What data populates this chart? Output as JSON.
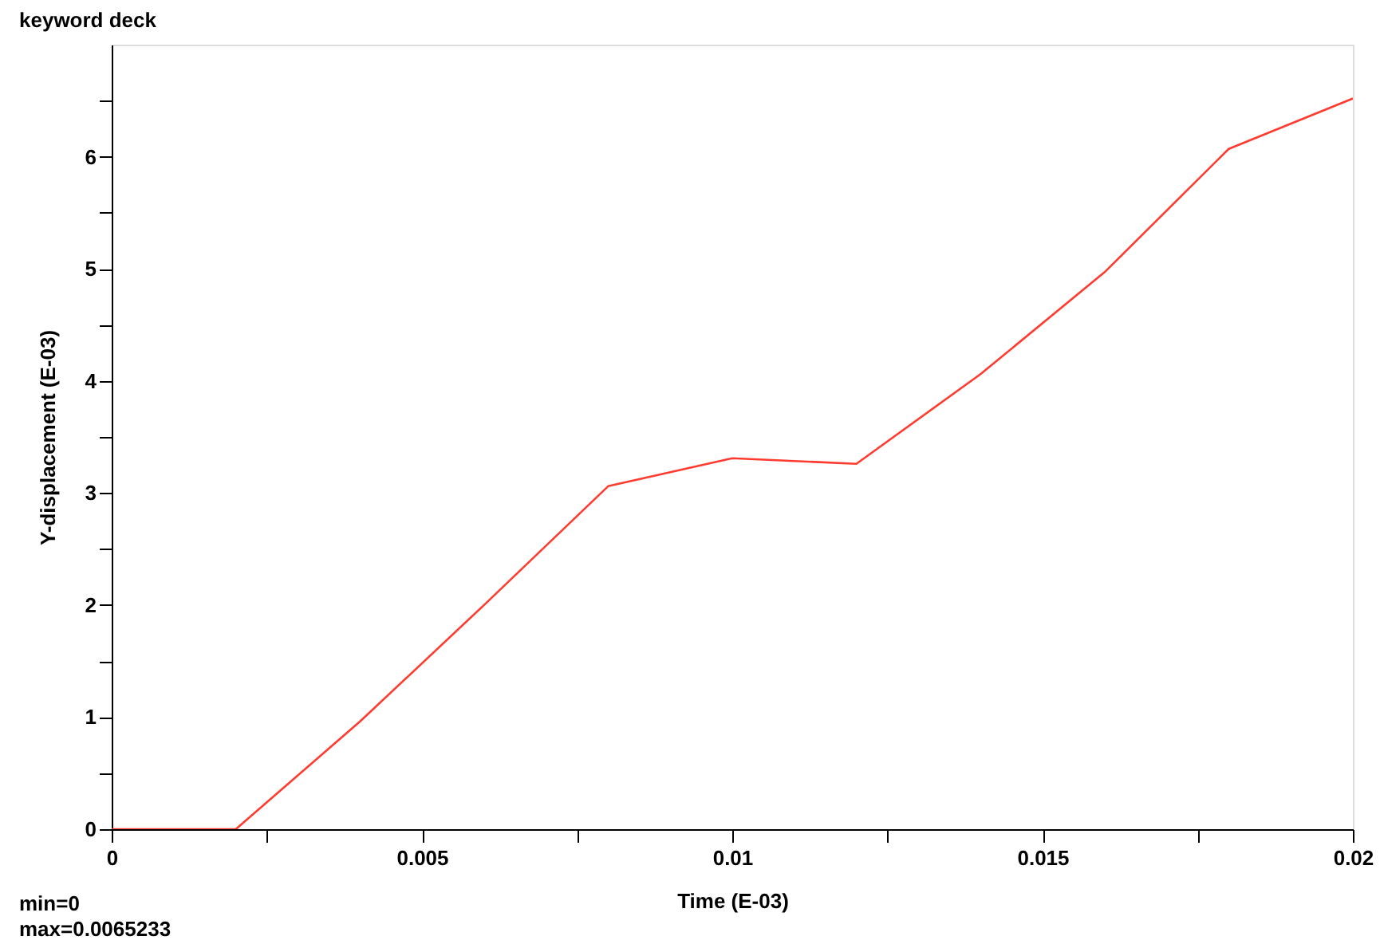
{
  "chart_data": {
    "type": "line",
    "title": "keyword deck",
    "xlabel": "Time (E-03)",
    "ylabel": "Y-displacement (E-03)",
    "x": [
      0,
      0.002,
      0.004,
      0.006,
      0.008,
      0.01,
      0.012,
      0.014,
      0.016,
      0.018,
      0.02
    ],
    "series": [
      {
        "color": "#ff3b30",
        "values": [
          0,
          0,
          0.96,
          2.0,
          3.06,
          3.31,
          3.26,
          4.06,
          4.97,
          6.07,
          6.52
        ]
      }
    ],
    "xlim": [
      0,
      0.02
    ],
    "ylim": [
      0,
      7
    ],
    "xticks": [
      0,
      {
        "value": 0.0025,
        "label": null
      },
      0.005,
      {
        "value": 0.0075,
        "label": null
      },
      0.01,
      {
        "value": 0.0125,
        "label": null
      },
      0.015,
      {
        "value": 0.0175,
        "label": null
      },
      0.02
    ],
    "yticks": [
      0,
      {
        "value": 0.5,
        "label": null
      },
      1,
      {
        "value": 1.5,
        "label": null
      },
      2,
      {
        "value": 2.5,
        "label": null
      },
      3,
      {
        "value": 3.5,
        "label": null
      },
      4,
      {
        "value": 4.5,
        "label": null
      },
      5,
      {
        "value": 5.5,
        "label": null
      },
      6,
      {
        "value": 6.5,
        "label": null
      }
    ],
    "annotations": [
      "min=0",
      "max=0.0065233"
    ],
    "grid": false,
    "legend": false,
    "marker": "none",
    "line_style": "solid"
  }
}
